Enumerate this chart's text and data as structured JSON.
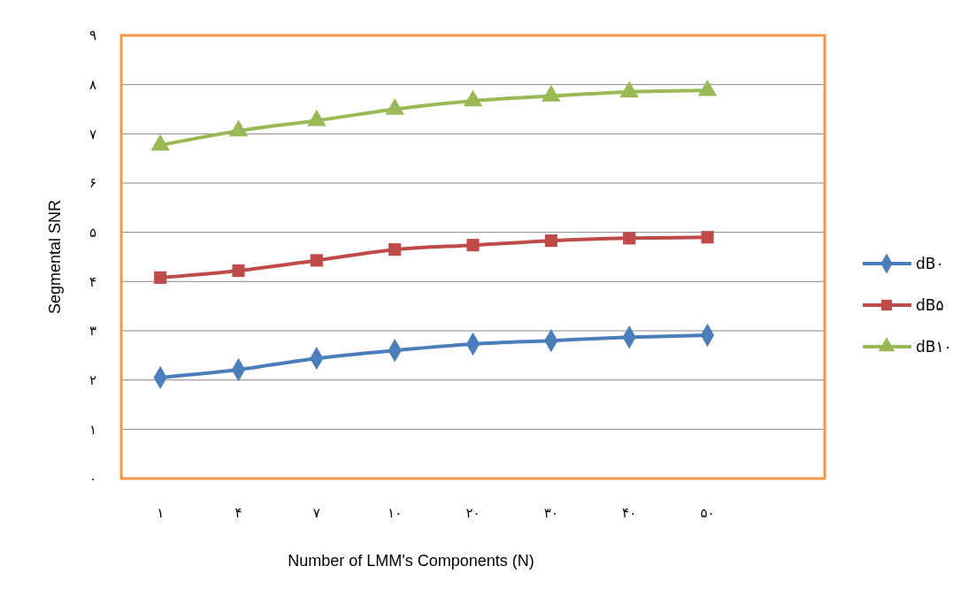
{
  "chart_data": {
    "type": "line",
    "xlabel": "Number of LMM's Components (N)",
    "ylabel": "Segmental SNR",
    "categories": [
      "۱",
      "۴",
      "۷",
      "۱۰",
      "۲۰",
      "۳۰",
      "۴۰",
      "۵۰",
      null
    ],
    "ylim": [
      0,
      9
    ],
    "yticks": [
      {
        "value": 0,
        "label": "۰"
      },
      {
        "value": 1,
        "label": "۱"
      },
      {
        "value": 2,
        "label": "۲"
      },
      {
        "value": 3,
        "label": "۳"
      },
      {
        "value": 4,
        "label": "۴"
      },
      {
        "value": 5,
        "label": "۵"
      },
      {
        "value": 6,
        "label": "۶"
      },
      {
        "value": 7,
        "label": "۷"
      },
      {
        "value": 8,
        "label": "۸"
      },
      {
        "value": 9,
        "label": "۹"
      }
    ],
    "grid": "y",
    "legend": "right",
    "series": [
      {
        "name": "dB۰",
        "color": "#4a7ebb",
        "marker": "diamond",
        "values": [
          2.05,
          2.21,
          2.44,
          2.6,
          2.73,
          2.8,
          2.87,
          2.91,
          null
        ]
      },
      {
        "name": "dB۵",
        "color": "#be4b48",
        "marker": "square",
        "values": [
          4.08,
          4.22,
          4.43,
          4.65,
          4.74,
          4.83,
          4.88,
          4.9,
          null
        ]
      },
      {
        "name": "dB۱۰",
        "color": "#98b954",
        "marker": "triangle",
        "values": [
          6.77,
          7.06,
          7.27,
          7.5,
          7.67,
          7.77,
          7.85,
          7.88,
          null
        ]
      }
    ]
  }
}
